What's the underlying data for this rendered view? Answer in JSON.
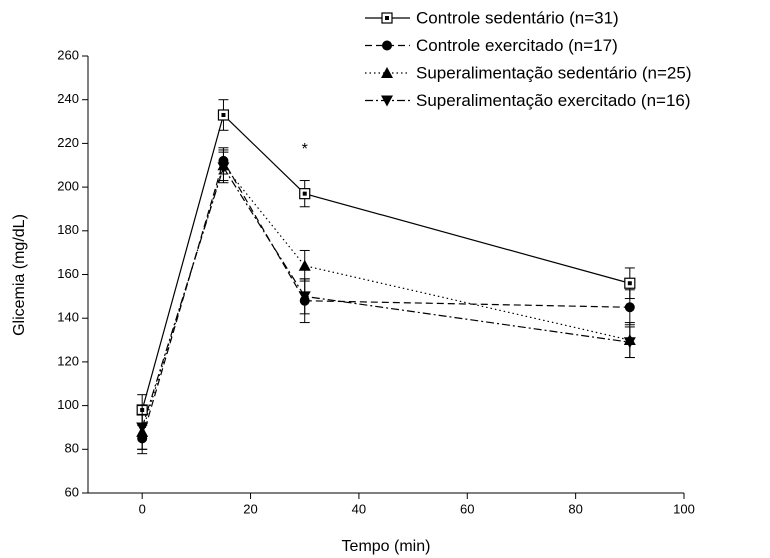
{
  "chart_data": {
    "type": "line",
    "x_label": "Tempo (min)",
    "y_label": "Glicemia (mg/dL)",
    "x": [
      0,
      15,
      30,
      90
    ],
    "xlim": [
      -10,
      100
    ],
    "xticks": [
      0,
      20,
      40,
      60,
      80,
      100
    ],
    "ylim": [
      60,
      260
    ],
    "yticks": [
      60,
      80,
      100,
      120,
      140,
      160,
      180,
      200,
      220,
      240,
      260
    ],
    "grid": false,
    "legend": "top right",
    "series": [
      {
        "name": "Controle sedentário (n=31)",
        "color": "#000000",
        "line_style": "solid",
        "marker": "square-open",
        "values": [
          98,
          233,
          197,
          156
        ],
        "errors": [
          7,
          7,
          6,
          7
        ]
      },
      {
        "name": "Controle exercitado (n=17)",
        "color": "#000000",
        "line_style": "dashed",
        "marker": "circle",
        "values": [
          85,
          212,
          148,
          145
        ],
        "errors": [
          7,
          6,
          10,
          8
        ]
      },
      {
        "name": "Superalimentação sedentário (n=25)",
        "color": "#000000",
        "line_style": "dotted",
        "marker": "triangle-up",
        "values": [
          88,
          210,
          164,
          130
        ],
        "errors": [
          8,
          7,
          7,
          8
        ]
      },
      {
        "name": "Superalimentação exercitado (n=16)",
        "color": "#000000",
        "line_style": "dashdot",
        "marker": "triangle-down",
        "values": [
          90,
          209,
          150,
          129
        ],
        "errors": [
          10,
          7,
          8,
          7
        ]
      }
    ],
    "annotations": [
      {
        "text": "*",
        "x": 30,
        "y": 219
      }
    ]
  }
}
